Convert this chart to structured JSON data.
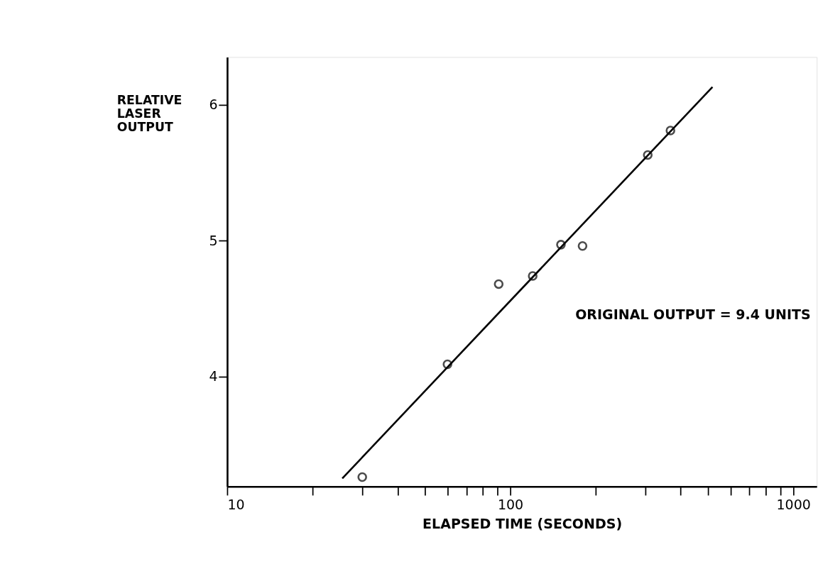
{
  "chart_data": {
    "type": "scatter",
    "xlabel": "ELAPSED TIME (SECONDS)",
    "ylabel": "RELATIVE LASER OUTPUT",
    "log": "x",
    "grid": false,
    "xlim": [
      10,
      1210
    ],
    "ylim": [
      3.19,
      6.35
    ],
    "xticks": [
      10,
      {
        "value": 20,
        "label": null
      },
      {
        "value": 30,
        "label": null
      },
      {
        "value": 40,
        "label": null
      },
      {
        "value": 50,
        "label": null
      },
      {
        "value": 60,
        "label": null
      },
      {
        "value": 70,
        "label": null
      },
      {
        "value": 80,
        "label": null
      },
      {
        "value": 90,
        "label": null
      },
      100,
      {
        "value": 200,
        "label": null
      },
      {
        "value": 300,
        "label": null
      },
      {
        "value": 400,
        "label": null
      },
      {
        "value": 500,
        "label": null
      },
      {
        "value": 600,
        "label": null
      },
      {
        "value": 700,
        "label": null
      },
      {
        "value": 800,
        "label": null
      },
      {
        "value": 900,
        "label": null
      },
      1000
    ],
    "yticks": [
      4,
      5,
      6
    ],
    "series": [
      {
        "marker": "circle",
        "color": "#000000",
        "x": [
          30,
          60,
          91,
          120,
          151,
          180,
          306,
          368
        ],
        "values": [
          3.26,
          4.09,
          4.68,
          4.74,
          4.97,
          4.96,
          5.63,
          5.81
        ]
      },
      {
        "type": "line",
        "color": "#000000",
        "line_style": "solid",
        "x": [
          25.5,
          518
        ],
        "values": [
          3.25,
          6.13
        ]
      }
    ],
    "annotations": [
      "ORIGINAL OUTPUT = 9.4 UNITS"
    ]
  }
}
